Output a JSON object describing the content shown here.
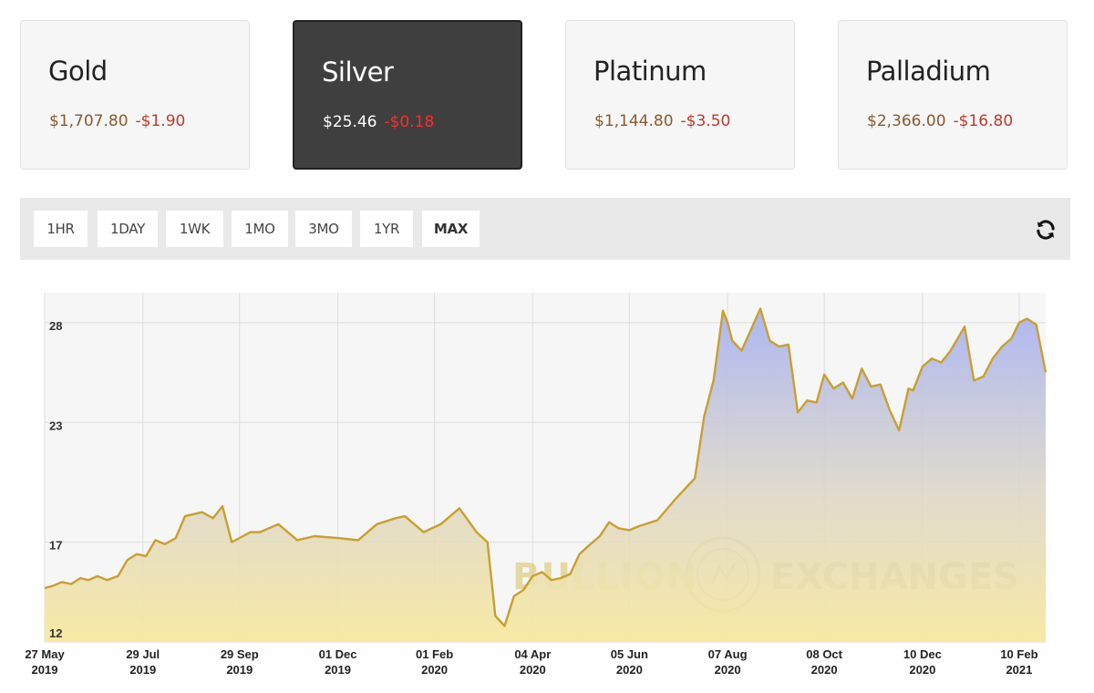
{
  "metals": [
    {
      "name": "Gold",
      "price": "$1,707.80",
      "change": "-$1.90",
      "active": false
    },
    {
      "name": "Silver",
      "price": "$25.46",
      "change": "-$0.18",
      "active": true
    },
    {
      "name": "Platinum",
      "price": "$1,144.80",
      "change": "-$3.50",
      "active": false
    },
    {
      "name": "Palladium",
      "price": "$2,366.00",
      "change": "-$16.80",
      "active": false
    }
  ],
  "ranges": [
    "1HR",
    "1DAY",
    "1WK",
    "1MO",
    "3MO",
    "1YR",
    "MAX"
  ],
  "selected_range": "MAX",
  "icons": {
    "refresh": "refresh-icon"
  },
  "watermark": "BULLION EXCHANGES",
  "colors": {
    "line": "#c8a030",
    "fill_top": "#aab4f4",
    "fill_bottom": "#f7e8a2",
    "active_card": "#3f3f3f",
    "change": "#c0392b"
  },
  "chart_data": {
    "type": "area",
    "title": "",
    "xlabel": "",
    "ylabel": "",
    "ylim": [
      12,
      29.5
    ],
    "yticks": [
      12,
      17,
      23,
      28
    ],
    "grid": true,
    "x_ticks": [
      {
        "date": "2019-05-27",
        "line1": "27 May",
        "line2": "2019"
      },
      {
        "date": "2019-07-29",
        "line1": "29 Jul",
        "line2": "2019"
      },
      {
        "date": "2019-09-29",
        "line1": "29 Sep",
        "line2": "2019"
      },
      {
        "date": "2019-12-01",
        "line1": "01 Dec",
        "line2": "2019"
      },
      {
        "date": "2020-02-01",
        "line1": "01 Feb",
        "line2": "2020"
      },
      {
        "date": "2020-04-04",
        "line1": "04 Apr",
        "line2": "2020"
      },
      {
        "date": "2020-06-05",
        "line1": "05 Jun",
        "line2": "2020"
      },
      {
        "date": "2020-08-07",
        "line1": "07 Aug",
        "line2": "2020"
      },
      {
        "date": "2020-10-08",
        "line1": "08 Oct",
        "line2": "2020"
      },
      {
        "date": "2020-12-10",
        "line1": "10 Dec",
        "line2": "2020"
      },
      {
        "date": "2021-02-10",
        "line1": "10 Feb",
        "line2": "2021"
      }
    ],
    "series": [
      {
        "x": [
          "2019-05-27",
          "2019-06-01",
          "2019-06-07",
          "2019-06-13",
          "2019-06-19",
          "2019-06-24",
          "2019-06-30",
          "2019-07-06",
          "2019-07-13",
          "2019-07-19",
          "2019-07-25",
          "2019-07-31",
          "2019-08-06",
          "2019-08-12",
          "2019-08-19",
          "2019-08-25",
          "2019-09-05",
          "2019-09-12",
          "2019-09-18",
          "2019-09-24",
          "2019-10-06",
          "2019-10-12",
          "2019-10-24",
          "2019-11-05",
          "2019-11-16",
          "2019-12-02",
          "2019-12-14",
          "2019-12-26",
          "2020-01-07",
          "2020-01-13",
          "2020-01-25",
          "2020-02-05",
          "2020-02-17",
          "2020-02-28",
          "2020-03-06",
          "2020-03-11",
          "2020-03-17",
          "2020-03-23",
          "2020-03-29",
          "2020-04-04",
          "2020-04-10",
          "2020-04-16",
          "2020-04-22",
          "2020-04-28",
          "2020-05-04",
          "2020-05-11",
          "2020-05-17",
          "2020-05-23",
          "2020-05-29",
          "2020-06-05",
          "2020-06-11",
          "2020-06-23",
          "2020-07-05",
          "2020-07-17",
          "2020-07-23",
          "2020-07-29",
          "2020-08-04",
          "2020-08-07",
          "2020-08-10",
          "2020-08-16",
          "2020-08-28",
          "2020-09-03",
          "2020-09-09",
          "2020-09-15",
          "2020-09-21",
          "2020-09-27",
          "2020-10-03",
          "2020-10-08",
          "2020-10-14",
          "2020-10-20",
          "2020-10-26",
          "2020-11-01",
          "2020-11-07",
          "2020-11-13",
          "2020-11-19",
          "2020-11-25",
          "2020-12-01",
          "2020-12-04",
          "2020-12-10",
          "2020-12-16",
          "2020-12-22",
          "2020-12-28",
          "2021-01-06",
          "2021-01-12",
          "2021-01-18",
          "2021-01-24",
          "2021-01-30",
          "2021-02-05",
          "2021-02-10",
          "2021-02-15",
          "2021-02-21",
          "2021-02-27"
        ],
        "values": [
          14.7,
          14.8,
          15.0,
          14.9,
          15.2,
          15.1,
          15.3,
          15.1,
          15.3,
          16.1,
          16.4,
          16.3,
          17.1,
          16.9,
          17.2,
          18.3,
          18.5,
          18.2,
          18.8,
          17.0,
          17.5,
          17.5,
          17.9,
          17.1,
          17.3,
          17.2,
          17.1,
          17.9,
          18.2,
          18.3,
          17.5,
          17.9,
          18.7,
          17.5,
          17.0,
          13.3,
          12.8,
          14.3,
          14.6,
          15.3,
          15.5,
          15.1,
          15.2,
          15.4,
          16.4,
          16.9,
          17.3,
          18.0,
          17.7,
          17.6,
          17.8,
          18.1,
          19.2,
          20.2,
          23.3,
          25.1,
          28.6,
          28.0,
          27.1,
          26.6,
          28.7,
          27.1,
          26.8,
          26.9,
          23.5,
          24.1,
          24.0,
          25.4,
          24.7,
          25.0,
          24.2,
          25.7,
          24.8,
          24.9,
          23.6,
          22.6,
          24.7,
          24.6,
          25.8,
          26.2,
          26.0,
          26.6,
          27.8,
          25.1,
          25.3,
          26.2,
          26.8,
          27.2,
          28.0,
          28.2,
          27.9,
          25.5
        ]
      }
    ]
  }
}
